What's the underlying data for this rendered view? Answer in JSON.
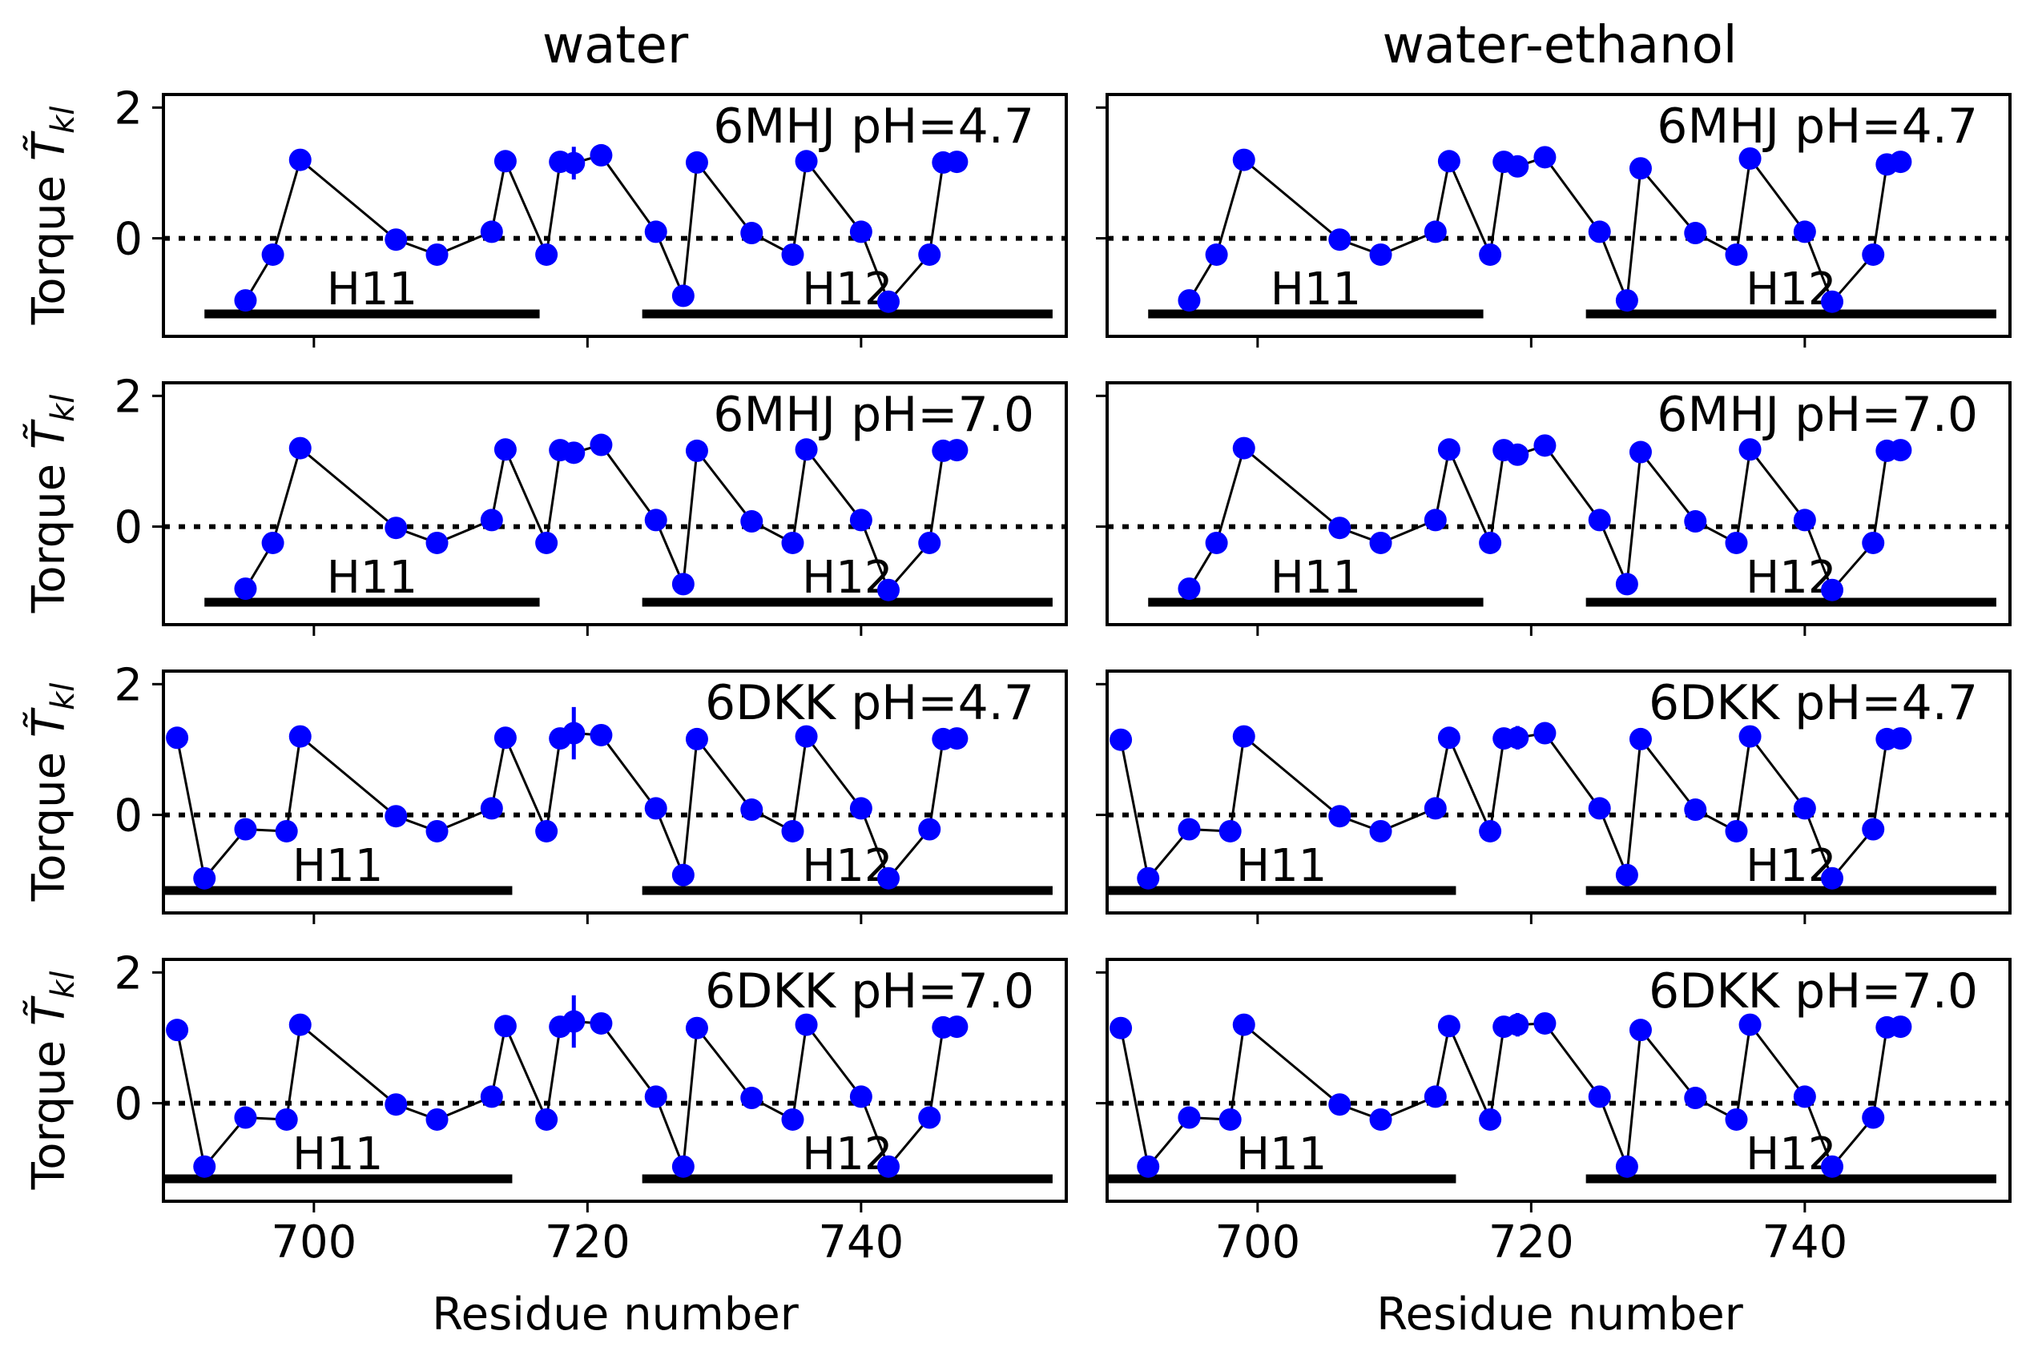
{
  "colors": {
    "marker": "#0000ff",
    "line": "#000000",
    "background": "#ffffff"
  },
  "figure": {
    "column_titles": [
      "water",
      "water-ethanol"
    ],
    "xlabel": "Residue number",
    "ylabel_prefix": "Torque ",
    "ylabel_symbol": "T̃",
    "ylabel_subscript": "kl",
    "helix_labels": [
      "H11",
      "H12"
    ]
  },
  "chart_data": [
    {
      "type": "line",
      "column": "water",
      "row": 1,
      "annotation": "6MHJ pH=4.7",
      "xlim": [
        689,
        755
      ],
      "ylim": [
        -1.5,
        2.2
      ],
      "xticks": [
        700,
        720,
        740
      ],
      "yticks": [
        0,
        2
      ],
      "x": [
        695,
        697,
        699,
        706,
        709,
        713,
        714,
        717,
        718,
        719,
        721,
        725,
        727,
        728,
        732,
        735,
        736,
        740,
        742,
        745,
        746,
        747
      ],
      "y": [
        -0.95,
        -0.25,
        1.2,
        -0.02,
        -0.25,
        0.1,
        1.18,
        -0.25,
        1.17,
        1.15,
        1.27,
        0.1,
        -0.88,
        1.16,
        0.08,
        -0.25,
        1.18,
        0.1,
        -0.97,
        -0.25,
        1.16,
        1.17
      ],
      "yerr": [
        0,
        0,
        0,
        0,
        0,
        0,
        0,
        0,
        0,
        0.25,
        0,
        0,
        0,
        0,
        0,
        0,
        0,
        0,
        0,
        0,
        0,
        0
      ],
      "helices": [
        {
          "label": "H11",
          "start": 692,
          "end": 716.5
        },
        {
          "label": "H12",
          "start": 724,
          "end": 754
        }
      ]
    },
    {
      "type": "line",
      "column": "water-ethanol",
      "row": 1,
      "annotation": "6MHJ pH=4.7",
      "xlim": [
        689,
        755
      ],
      "ylim": [
        -1.5,
        2.2
      ],
      "xticks": [
        700,
        720,
        740
      ],
      "yticks": [
        0,
        2
      ],
      "x": [
        695,
        697,
        699,
        706,
        709,
        713,
        714,
        717,
        718,
        719,
        721,
        725,
        727,
        728,
        732,
        735,
        736,
        740,
        742,
        745,
        746,
        747
      ],
      "y": [
        -0.95,
        -0.25,
        1.2,
        -0.02,
        -0.25,
        0.1,
        1.18,
        -0.25,
        1.17,
        1.1,
        1.24,
        0.1,
        -0.95,
        1.07,
        0.08,
        -0.25,
        1.22,
        0.1,
        -0.97,
        -0.25,
        1.13,
        1.17
      ],
      "yerr": [
        0,
        0,
        0,
        0,
        0,
        0,
        0,
        0,
        0,
        0,
        0,
        0,
        0,
        0,
        0,
        0,
        0,
        0,
        0,
        0,
        0,
        0
      ],
      "helices": [
        {
          "label": "H11",
          "start": 692,
          "end": 716.5
        },
        {
          "label": "H12",
          "start": 724,
          "end": 754
        }
      ]
    },
    {
      "type": "line",
      "column": "water",
      "row": 2,
      "annotation": "6MHJ pH=7.0",
      "xlim": [
        689,
        755
      ],
      "ylim": [
        -1.5,
        2.2
      ],
      "xticks": [
        700,
        720,
        740
      ],
      "yticks": [
        0,
        2
      ],
      "x": [
        695,
        697,
        699,
        706,
        709,
        713,
        714,
        717,
        718,
        719,
        721,
        725,
        727,
        728,
        732,
        735,
        736,
        740,
        742,
        745,
        746,
        747
      ],
      "y": [
        -0.95,
        -0.25,
        1.2,
        -0.02,
        -0.25,
        0.1,
        1.18,
        -0.25,
        1.17,
        1.13,
        1.25,
        0.1,
        -0.88,
        1.16,
        0.08,
        -0.25,
        1.18,
        0.1,
        -0.97,
        -0.25,
        1.16,
        1.17
      ],
      "yerr": [
        0,
        0,
        0,
        0,
        0,
        0,
        0,
        0,
        0,
        0,
        0,
        0,
        0,
        0,
        0,
        0,
        0,
        0,
        0,
        0,
        0,
        0
      ],
      "helices": [
        {
          "label": "H11",
          "start": 692,
          "end": 716.5
        },
        {
          "label": "H12",
          "start": 724,
          "end": 754
        }
      ]
    },
    {
      "type": "line",
      "column": "water-ethanol",
      "row": 2,
      "annotation": "6MHJ pH=7.0",
      "xlim": [
        689,
        755
      ],
      "ylim": [
        -1.5,
        2.2
      ],
      "xticks": [
        700,
        720,
        740
      ],
      "yticks": [
        0,
        2
      ],
      "x": [
        695,
        697,
        699,
        706,
        709,
        713,
        714,
        717,
        718,
        719,
        721,
        725,
        727,
        728,
        732,
        735,
        736,
        740,
        742,
        745,
        746,
        747
      ],
      "y": [
        -0.95,
        -0.25,
        1.2,
        -0.02,
        -0.25,
        0.1,
        1.18,
        -0.25,
        1.17,
        1.1,
        1.24,
        0.1,
        -0.88,
        1.14,
        0.08,
        -0.25,
        1.18,
        0.1,
        -0.97,
        -0.25,
        1.16,
        1.17
      ],
      "yerr": [
        0,
        0,
        0,
        0,
        0,
        0,
        0,
        0,
        0,
        0,
        0,
        0,
        0,
        0,
        0,
        0,
        0,
        0,
        0,
        0,
        0,
        0
      ],
      "helices": [
        {
          "label": "H11",
          "start": 692,
          "end": 716.5
        },
        {
          "label": "H12",
          "start": 724,
          "end": 754
        }
      ]
    },
    {
      "type": "line",
      "column": "water",
      "row": 3,
      "annotation": "6DKK pH=4.7",
      "xlim": [
        689,
        755
      ],
      "ylim": [
        -1.5,
        2.2
      ],
      "xticks": [
        700,
        720,
        740
      ],
      "yticks": [
        0,
        2
      ],
      "x": [
        690,
        692,
        695,
        698,
        699,
        706,
        709,
        713,
        714,
        717,
        718,
        719,
        721,
        725,
        727,
        728,
        732,
        735,
        736,
        740,
        742,
        745,
        746,
        747
      ],
      "y": [
        1.18,
        -0.97,
        -0.22,
        -0.25,
        1.2,
        -0.02,
        -0.25,
        0.1,
        1.18,
        -0.25,
        1.17,
        1.25,
        1.22,
        0.1,
        -0.92,
        1.16,
        0.08,
        -0.25,
        1.2,
        0.1,
        -0.97,
        -0.22,
        1.16,
        1.17
      ],
      "yerr": [
        0,
        0,
        0,
        0,
        0,
        0,
        0,
        0,
        0,
        0,
        0,
        0.4,
        0,
        0,
        0,
        0,
        0,
        0,
        0,
        0,
        0,
        0,
        0,
        0
      ],
      "helices": [
        {
          "label": "H11",
          "start": 689,
          "end": 714.5
        },
        {
          "label": "H12",
          "start": 724,
          "end": 754
        }
      ]
    },
    {
      "type": "line",
      "column": "water-ethanol",
      "row": 3,
      "annotation": "6DKK pH=4.7",
      "xlim": [
        689,
        755
      ],
      "ylim": [
        -1.5,
        2.2
      ],
      "xticks": [
        700,
        720,
        740
      ],
      "yticks": [
        0,
        2
      ],
      "x": [
        690,
        692,
        695,
        698,
        699,
        706,
        709,
        713,
        714,
        717,
        718,
        719,
        721,
        725,
        727,
        728,
        732,
        735,
        736,
        740,
        742,
        745,
        746,
        747
      ],
      "y": [
        1.15,
        -0.97,
        -0.22,
        -0.25,
        1.2,
        -0.02,
        -0.25,
        0.1,
        1.18,
        -0.25,
        1.17,
        1.18,
        1.25,
        0.1,
        -0.92,
        1.16,
        0.08,
        -0.25,
        1.2,
        0.1,
        -0.97,
        -0.22,
        1.16,
        1.17
      ],
      "yerr": [
        0,
        0,
        0,
        0,
        0,
        0,
        0,
        0,
        0,
        0,
        0,
        0.18,
        0,
        0,
        0,
        0,
        0,
        0,
        0,
        0,
        0,
        0,
        0,
        0
      ],
      "helices": [
        {
          "label": "H11",
          "start": 689,
          "end": 714.5
        },
        {
          "label": "H12",
          "start": 724,
          "end": 754
        }
      ]
    },
    {
      "type": "line",
      "column": "water",
      "row": 4,
      "annotation": "6DKK pH=7.0",
      "xlim": [
        689,
        755
      ],
      "ylim": [
        -1.5,
        2.2
      ],
      "xticks": [
        700,
        720,
        740
      ],
      "yticks": [
        0,
        2
      ],
      "x": [
        690,
        692,
        695,
        698,
        699,
        706,
        709,
        713,
        714,
        717,
        718,
        719,
        721,
        725,
        727,
        728,
        732,
        735,
        736,
        740,
        742,
        745,
        746,
        747
      ],
      "y": [
        1.12,
        -0.97,
        -0.22,
        -0.25,
        1.2,
        -0.02,
        -0.25,
        0.1,
        1.18,
        -0.25,
        1.17,
        1.25,
        1.22,
        0.1,
        -0.97,
        1.15,
        0.08,
        -0.25,
        1.2,
        0.1,
        -0.97,
        -0.22,
        1.16,
        1.17
      ],
      "yerr": [
        0,
        0,
        0,
        0,
        0,
        0,
        0,
        0,
        0,
        0,
        0,
        0.4,
        0,
        0,
        0,
        0,
        0,
        0,
        0,
        0,
        0,
        0,
        0,
        0
      ],
      "helices": [
        {
          "label": "H11",
          "start": 689,
          "end": 714.5
        },
        {
          "label": "H12",
          "start": 724,
          "end": 754
        }
      ]
    },
    {
      "type": "line",
      "column": "water-ethanol",
      "row": 4,
      "annotation": "6DKK pH=7.0",
      "xlim": [
        689,
        755
      ],
      "ylim": [
        -1.5,
        2.2
      ],
      "xticks": [
        700,
        720,
        740
      ],
      "yticks": [
        0,
        2
      ],
      "x": [
        690,
        692,
        695,
        698,
        699,
        706,
        709,
        713,
        714,
        717,
        718,
        719,
        721,
        725,
        727,
        728,
        732,
        735,
        736,
        740,
        742,
        745,
        746,
        747
      ],
      "y": [
        1.15,
        -0.97,
        -0.22,
        -0.25,
        1.2,
        -0.02,
        -0.25,
        0.1,
        1.18,
        -0.25,
        1.17,
        1.2,
        1.22,
        0.1,
        -0.97,
        1.12,
        0.08,
        -0.25,
        1.2,
        0.1,
        -0.97,
        -0.22,
        1.16,
        1.17
      ],
      "yerr": [
        0,
        0,
        0,
        0,
        0,
        0,
        0,
        0,
        0,
        0,
        0,
        0.18,
        0,
        0,
        0,
        0,
        0,
        0,
        0,
        0,
        0,
        0,
        0,
        0
      ],
      "helices": [
        {
          "label": "H11",
          "start": 689,
          "end": 714.5
        },
        {
          "label": "H12",
          "start": 724,
          "end": 754
        }
      ]
    }
  ]
}
